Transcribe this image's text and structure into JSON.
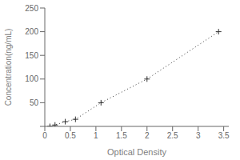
{
  "chart_data": {
    "type": "line",
    "xlabel": "Optical Density",
    "ylabel": "Concentration(ng/mL)",
    "x": [
      0.1,
      0.2,
      0.4,
      0.6,
      1.1,
      2.0,
      3.4
    ],
    "values": [
      0,
      3,
      10,
      15,
      50,
      100,
      200
    ],
    "color": "#333333",
    "marker": "plus",
    "line_style": "dotted",
    "xlim": [
      0,
      3.6
    ],
    "ylim": [
      0,
      250
    ],
    "xticks": [
      0,
      0.5,
      1,
      1.5,
      2,
      2.5,
      3,
      3.5
    ],
    "yticks": [
      {
        "value": 0,
        "label": ""
      },
      50,
      100,
      150,
      200,
      250
    ]
  }
}
